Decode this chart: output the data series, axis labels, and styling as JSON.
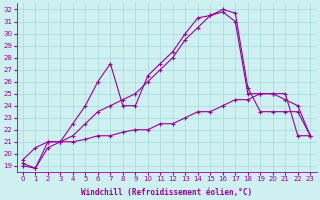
{
  "xlabel": "Windchill (Refroidissement éolien,°C)",
  "bg_color": "#cff0f0",
  "line_color": "#990099",
  "grid_color": "#aadddd",
  "x_ticks": [
    0,
    1,
    2,
    3,
    4,
    5,
    6,
    7,
    8,
    9,
    10,
    11,
    12,
    13,
    14,
    15,
    16,
    17,
    18,
    19,
    20,
    21,
    22,
    23
  ],
  "y_ticks": [
    19,
    20,
    21,
    22,
    23,
    24,
    25,
    26,
    27,
    28,
    29,
    30,
    31,
    32
  ],
  "ylim": [
    18.5,
    32.5
  ],
  "xlim": [
    -0.5,
    23.5
  ],
  "series_upper_x": [
    0,
    1,
    2,
    3,
    4,
    5,
    6,
    7,
    8,
    9,
    10,
    11,
    12,
    13,
    14,
    15,
    16,
    17,
    18,
    19,
    20,
    21,
    22,
    23
  ],
  "series_upper_y": [
    19.2,
    18.8,
    21.0,
    21.0,
    22.5,
    24.0,
    26.0,
    27.5,
    24.0,
    24.0,
    26.5,
    27.5,
    28.5,
    30.0,
    31.3,
    31.5,
    31.8,
    31.0,
    25.0,
    25.0,
    25.0,
    25.0,
    21.5,
    21.5
  ],
  "series_mid_x": [
    0,
    1,
    2,
    3,
    4,
    5,
    6,
    7,
    8,
    9,
    10,
    11,
    12,
    13,
    14,
    15,
    16,
    17,
    18,
    19,
    20,
    21,
    22,
    23
  ],
  "series_mid_y": [
    19.5,
    20.5,
    21.0,
    21.0,
    21.5,
    22.5,
    23.5,
    24.0,
    24.5,
    25.0,
    26.0,
    27.0,
    28.0,
    29.5,
    30.5,
    31.5,
    32.0,
    31.7,
    25.5,
    23.5,
    23.5,
    23.5,
    23.5,
    21.5
  ],
  "series_lower_x": [
    0,
    1,
    2,
    3,
    4,
    5,
    6,
    7,
    8,
    9,
    10,
    11,
    12,
    13,
    14,
    15,
    16,
    17,
    18,
    19,
    20,
    21,
    22,
    23
  ],
  "series_lower_y": [
    19.0,
    18.8,
    20.5,
    21.0,
    21.0,
    21.2,
    21.5,
    21.5,
    21.8,
    22.0,
    22.0,
    22.5,
    22.5,
    23.0,
    23.5,
    23.5,
    24.0,
    24.5,
    24.5,
    25.0,
    25.0,
    24.5,
    24.0,
    21.5
  ]
}
